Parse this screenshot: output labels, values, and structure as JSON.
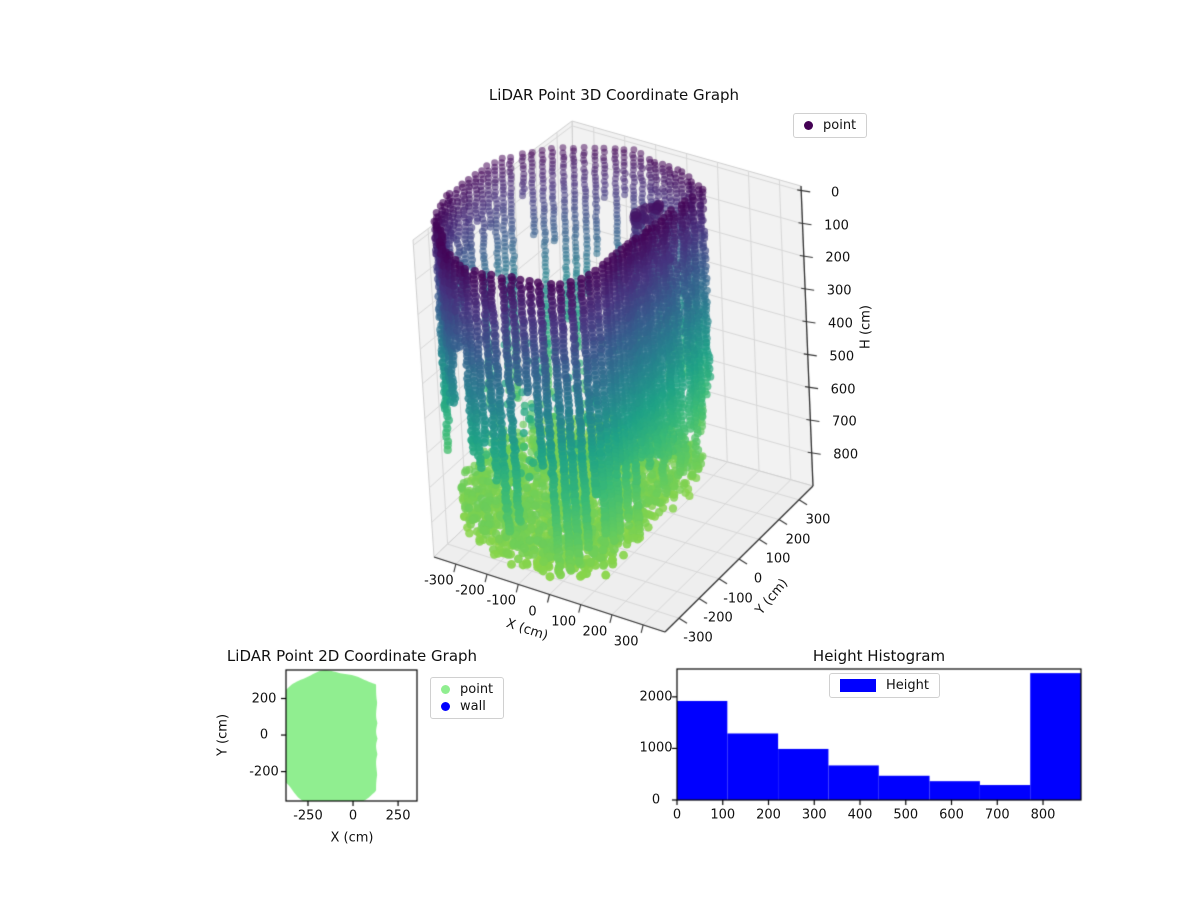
{
  "figure_bg": "#ffffff",
  "colors": {
    "hist_bar": "#0000ff",
    "point_2d": "#90ee90",
    "wall_2d": "#0000ff",
    "legend3d_marker": "#440154",
    "pane": "#f2f2f2",
    "floor_pane": "#eeeeee",
    "grid_line": "#d8d8d8",
    "viridis_stops": [
      "#440154",
      "#46327e",
      "#365c8d",
      "#277f8e",
      "#1fa187",
      "#38b977",
      "#5ec962",
      "#8ed645"
    ]
  },
  "chart_data": [
    {
      "id": "lidar3d",
      "type": "scatter",
      "projection": "3d",
      "title": "LiDAR Point 3D Coordinate Graph",
      "legend": {
        "entries": [
          {
            "label": "point",
            "color": "#440154"
          }
        ],
        "location": "upper right"
      },
      "xlabel": "X (cm)",
      "ylabel": "Y (cm)",
      "zlabel": "H (cm)",
      "xticks": [
        -300,
        -200,
        -100,
        0,
        100,
        200,
        300
      ],
      "yticks": [
        -300,
        -200,
        -100,
        0,
        100,
        200,
        300
      ],
      "zticks": [
        0,
        100,
        200,
        300,
        400,
        500,
        600,
        700,
        800
      ],
      "xlim": [
        -370,
        370
      ],
      "ylim": [
        -370,
        370
      ],
      "zlim": [
        -15,
        900
      ],
      "zaxis_inverted": true,
      "colormap": "viridis mapped to height: dark purple at H=0 (top rim) to green at H~880 (floor)",
      "point_cloud": {
        "shape": "cylindrical room scan of vertical point columns plus dense floor disk",
        "center_xy_cm": [
          -100,
          -20
        ],
        "scan_radius_cm": 365,
        "flat_wall_at_x_cm": 128,
        "height_range_cm": [
          0,
          880
        ],
        "wall_columns": 84,
        "column_point_spacing_cm": 10.5,
        "floor": "dense disk of points at H between about 786 and 870",
        "outliers": "teal mid-height dots scattered over floor; small dark squiggle cluster near top at about (15,185); a few isolated dots"
      }
    },
    {
      "id": "lidar2d",
      "type": "scatter",
      "title": "LiDAR Point 2D Coordinate Graph",
      "xlabel": "X (cm)",
      "ylabel": "Y (cm)",
      "xticks": [
        -250,
        0,
        250
      ],
      "yticks": [
        200,
        0,
        -200
      ],
      "xlim": [
        -372,
        355
      ],
      "ylim": [
        -361,
        356
      ],
      "series": [
        {
          "name": "point",
          "color": "#90ee90",
          "geometry": "filled scalloped disk centered near (-100,-20), radius ~365 cm, flattened on the right at x~128, clipped by the axes box"
        },
        {
          "name": "wall",
          "color": "#0000ff",
          "note": "legend entry only; no blue points visible"
        }
      ]
    },
    {
      "id": "height_hist",
      "type": "histogram",
      "title": "Height Histogram",
      "legend_label": "Height",
      "bar_color": "#0000ff",
      "bin_edges": [
        0,
        110,
        221,
        331,
        441,
        552,
        662,
        772,
        883
      ],
      "counts": [
        1920,
        1290,
        990,
        670,
        470,
        365,
        290,
        2460
      ],
      "xticks": [
        0,
        100,
        200,
        300,
        400,
        500,
        600,
        700,
        800
      ],
      "yticks": [
        0,
        1000,
        2000
      ],
      "ylim": [
        0,
        2540
      ],
      "grid": false
    }
  ]
}
